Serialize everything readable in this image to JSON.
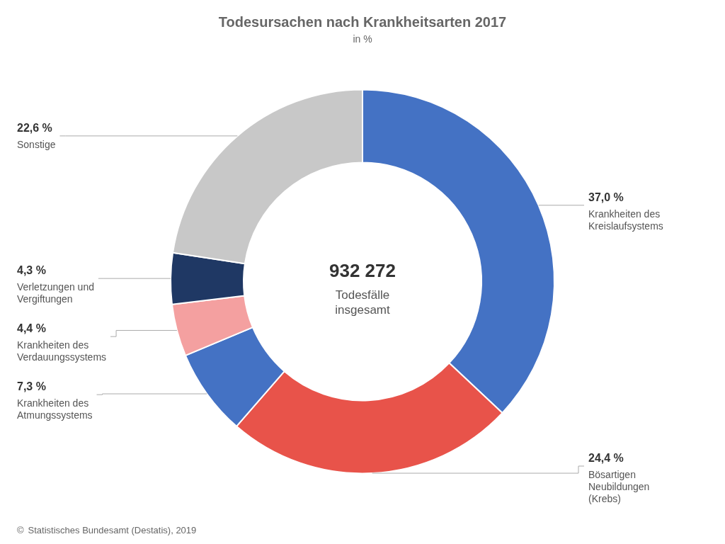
{
  "chart_data": {
    "type": "doughnut",
    "title": "Todesursachen nach Krankheitsarten 2017",
    "subtitle": "in %",
    "categories": [
      "Krankheiten des\nKreislaufsystems",
      "Bösartigen\nNeubildungen\n(Krebs)",
      "Krankheiten des\nAtmungssystems",
      "Krankheiten des\nVerdauungssystems",
      "Verletzungen und\nVergiftungen",
      "Sonstige"
    ],
    "values": [
      37.0,
      24.4,
      7.3,
      4.4,
      4.3,
      22.6
    ],
    "value_labels": [
      "37,0 %",
      "24,4 %",
      "7,3 %",
      "4,4 %",
      "4,3 %",
      "22,6 %"
    ],
    "colors": [
      "#4472C4",
      "#E8534A",
      "#4472C4",
      "#F4A0A0",
      "#1F3864",
      "#C8C8C8"
    ],
    "data_labels": true,
    "annotations": [
      "932 272",
      "Todesfälle\ninsgesamt",
      "©",
      "Statistisches Bundesamt (Destatis), 2019"
    ]
  }
}
